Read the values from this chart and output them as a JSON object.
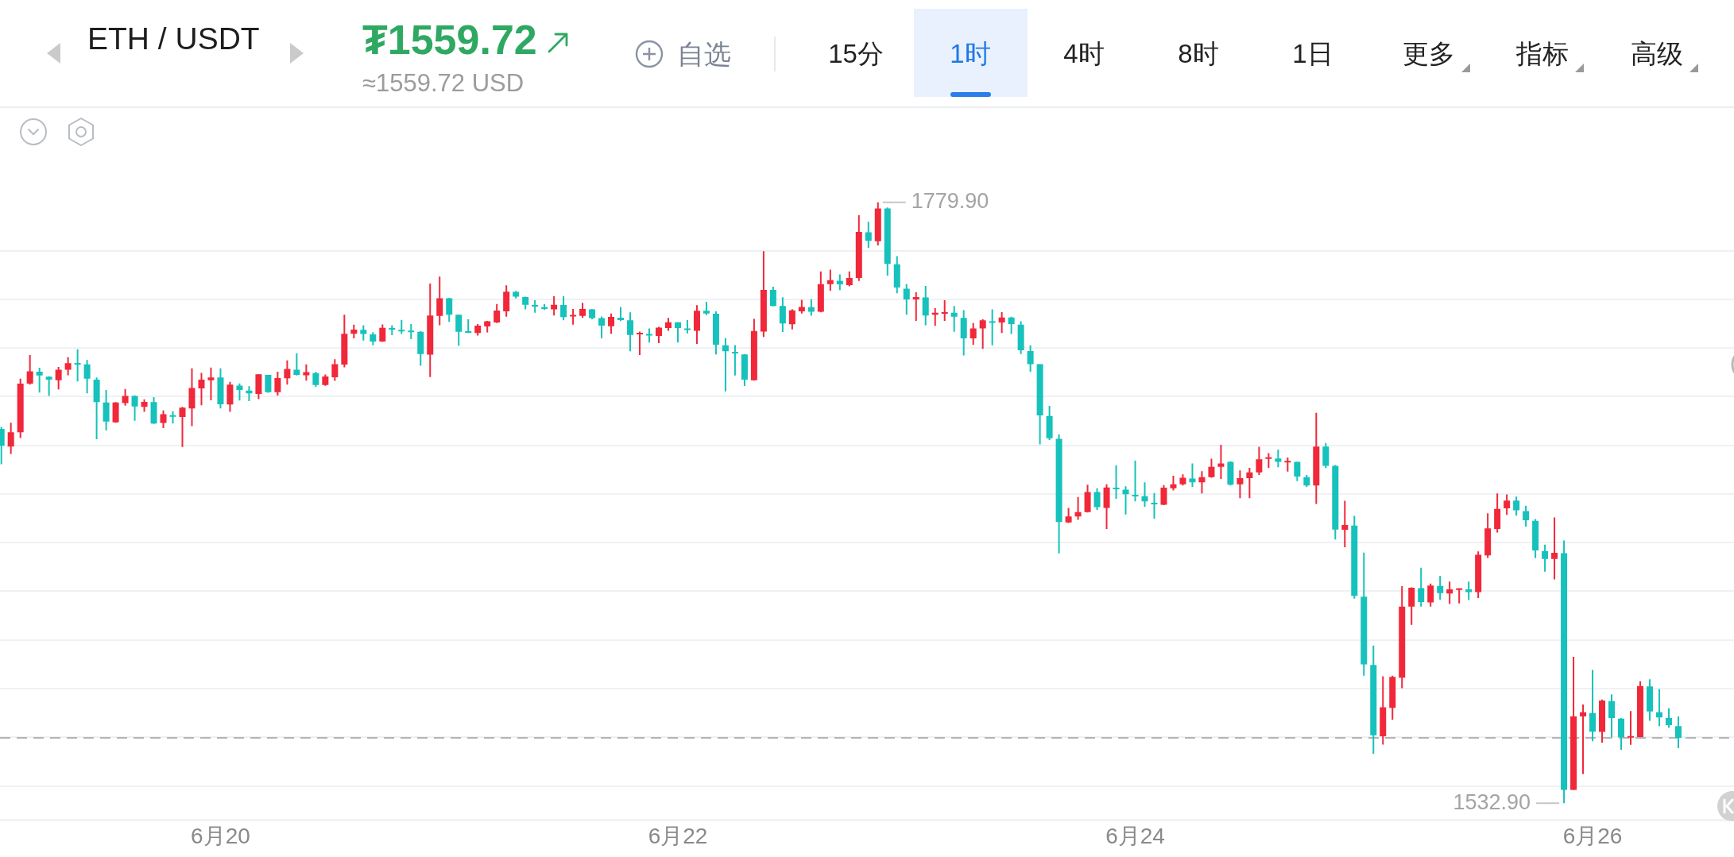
{
  "chart_data": {
    "type": "candlestick",
    "title": "ETH / USDT",
    "annotations": [
      "₮1559.72",
      "≈1559.72 USD",
      "自选",
      "15分",
      "1时",
      "4时",
      "8时",
      "1日",
      "更多",
      "指标",
      "高级",
      "1779.90",
      "1532.90"
    ],
    "categories": [
      null,
      null,
      null,
      null,
      null,
      null,
      null,
      null,
      null,
      null,
      null,
      null,
      null,
      null,
      null,
      null,
      null,
      null,
      null,
      null,
      null,
      null,
      null,
      "6月20",
      null,
      null,
      null,
      null,
      null,
      null,
      null,
      null,
      null,
      null,
      null,
      null,
      null,
      null,
      null,
      null,
      null,
      null,
      null,
      null,
      null,
      null,
      null,
      null,
      null,
      null,
      null,
      null,
      null,
      null,
      null,
      null,
      null,
      null,
      null,
      null,
      null,
      null,
      null,
      null,
      null,
      null,
      null,
      null,
      null,
      null,
      null,
      "6月22",
      null,
      null,
      null,
      null,
      null,
      null,
      null,
      null,
      null,
      null,
      null,
      null,
      null,
      null,
      null,
      null,
      null,
      null,
      null,
      null,
      null,
      null,
      null,
      null,
      null,
      null,
      null,
      null,
      null,
      null,
      null,
      null,
      null,
      null,
      null,
      null,
      null,
      null,
      null,
      null,
      null,
      null,
      null,
      null,
      null,
      null,
      null,
      "6月24",
      null,
      null,
      null,
      null,
      null,
      null,
      null,
      null,
      null,
      null,
      null,
      null,
      null,
      null,
      null,
      null,
      null,
      null,
      null,
      null,
      null,
      null,
      null,
      null,
      null,
      null,
      null,
      null,
      null,
      null,
      null,
      null,
      null,
      null,
      null,
      null,
      null,
      null,
      null,
      null,
      null,
      null,
      null,
      null,
      null,
      null,
      null,
      "6月26",
      null,
      null,
      null,
      null,
      null,
      null,
      null,
      null,
      null
    ],
    "ohlc": [
      [
        1686.8,
        1687.6,
        1672.2,
        1679.8
      ],
      [
        1679.5,
        1689.3,
        1676.5,
        1685.4
      ],
      [
        1685.4,
        1707.4,
        1683.0,
        1705.4
      ],
      [
        1705.4,
        1717.1,
        1705.0,
        1710.4
      ],
      [
        1710.3,
        1711.9,
        1701.7,
        1708.7
      ],
      [
        1708.2,
        1708.4,
        1700.3,
        1707.0
      ],
      [
        1706.8,
        1712.2,
        1703.0,
        1711.1
      ],
      [
        1711.1,
        1716.2,
        1708.8,
        1713.8
      ],
      [
        1713.9,
        1719.5,
        1706.3,
        1713.5
      ],
      [
        1713.3,
        1715.1,
        1701.4,
        1707.4
      ],
      [
        1707.0,
        1707.9,
        1682.5,
        1697.8
      ],
      [
        1697.6,
        1702.8,
        1686.1,
        1689.8
      ],
      [
        1689.5,
        1697.8,
        1689.3,
        1697.6
      ],
      [
        1697.4,
        1703.2,
        1696.3,
        1700.3
      ],
      [
        1700.3,
        1700.6,
        1690.1,
        1696.0
      ],
      [
        1695.8,
        1698.9,
        1693.8,
        1697.9
      ],
      [
        1697.8,
        1699.8,
        1688.8,
        1689.0
      ],
      [
        1689.2,
        1694.4,
        1687.1,
        1692.8
      ],
      [
        1692.4,
        1694.0,
        1689.0,
        1691.9
      ],
      [
        1691.7,
        1695.8,
        1679.3,
        1695.5
      ],
      [
        1695.2,
        1711.7,
        1687.9,
        1703.6
      ],
      [
        1703.4,
        1709.8,
        1696.5,
        1707.0
      ],
      [
        1706.8,
        1712.0,
        1698.5,
        1707.9
      ],
      [
        1707.9,
        1711.7,
        1695.2,
        1696.9
      ],
      [
        1696.8,
        1706.1,
        1693.8,
        1705.0
      ],
      [
        1704.6,
        1705.5,
        1698.4,
        1702.8
      ],
      [
        1702.5,
        1704.3,
        1698.2,
        1701.4
      ],
      [
        1701.1,
        1709.3,
        1699.0,
        1709.2
      ],
      [
        1709.0,
        1709.0,
        1701.6,
        1701.9
      ],
      [
        1701.9,
        1710.3,
        1700.5,
        1707.7
      ],
      [
        1707.6,
        1714.9,
        1705.0,
        1711.4
      ],
      [
        1711.1,
        1717.9,
        1708.7,
        1709.0
      ],
      [
        1708.8,
        1713.3,
        1706.6,
        1710.1
      ],
      [
        1709.7,
        1710.3,
        1704.0,
        1704.8
      ],
      [
        1704.8,
        1709.1,
        1704.5,
        1708.3
      ],
      [
        1708.0,
        1715.4,
        1706.5,
        1713.4
      ],
      [
        1713.2,
        1733.7,
        1712.1,
        1725.9
      ],
      [
        1725.9,
        1729.6,
        1724.0,
        1727.6
      ],
      [
        1727.5,
        1729.4,
        1723.1,
        1725.8
      ],
      [
        1725.6,
        1726.5,
        1721.1,
        1722.7
      ],
      [
        1722.7,
        1729.7,
        1722.5,
        1728.3
      ],
      [
        1728.2,
        1729.4,
        1725.3,
        1727.8
      ],
      [
        1727.5,
        1731.6,
        1725.8,
        1727.0
      ],
      [
        1727.2,
        1729.9,
        1723.7,
        1726.8
      ],
      [
        1726.7,
        1726.9,
        1712.7,
        1717.5
      ],
      [
        1717.3,
        1746.5,
        1708.1,
        1733.4
      ],
      [
        1733.2,
        1749.4,
        1729.4,
        1740.5
      ],
      [
        1740.5,
        1740.6,
        1730.8,
        1733.7
      ],
      [
        1733.7,
        1733.8,
        1721.0,
        1726.7
      ],
      [
        1726.9,
        1731.8,
        1726.2,
        1726.4
      ],
      [
        1726.2,
        1729.9,
        1725.1,
        1729.2
      ],
      [
        1728.9,
        1731.2,
        1726.4,
        1731.0
      ],
      [
        1730.5,
        1738.1,
        1730.3,
        1735.4
      ],
      [
        1735.1,
        1745.8,
        1732.9,
        1743.2
      ],
      [
        1743.1,
        1743.5,
        1740.4,
        1741.1
      ],
      [
        1741.0,
        1741.1,
        1735.9,
        1737.8
      ],
      [
        1737.7,
        1739.7,
        1734.5,
        1737.3
      ],
      [
        1736.8,
        1738.1,
        1735.7,
        1736.1
      ],
      [
        1735.9,
        1741.3,
        1733.4,
        1737.8
      ],
      [
        1737.7,
        1741.3,
        1731.4,
        1732.7
      ],
      [
        1733.2,
        1736.1,
        1729.6,
        1733.6
      ],
      [
        1733.2,
        1738.6,
        1732.4,
        1736.1
      ],
      [
        1735.9,
        1736.1,
        1731.8,
        1732.3
      ],
      [
        1732.3,
        1733.0,
        1724.0,
        1729.2
      ],
      [
        1729.0,
        1734.2,
        1725.9,
        1732.8
      ],
      [
        1732.5,
        1736.9,
        1731.1,
        1731.5
      ],
      [
        1731.4,
        1734.7,
        1718.7,
        1725.4
      ],
      [
        1725.8,
        1726.8,
        1717.1,
        1726.3
      ],
      [
        1725.8,
        1728.1,
        1722.3,
        1725.4
      ],
      [
        1725.0,
        1728.7,
        1722.0,
        1728.4
      ],
      [
        1728.2,
        1732.4,
        1727.1,
        1730.6
      ],
      [
        1730.6,
        1730.7,
        1722.3,
        1728.2
      ],
      [
        1728.1,
        1731.5,
        1726.0,
        1727.7
      ],
      [
        1727.1,
        1737.6,
        1721.7,
        1735.3
      ],
      [
        1735.3,
        1739.0,
        1733.5,
        1734.2
      ],
      [
        1734.1,
        1735.1,
        1717.4,
        1721.4
      ],
      [
        1721.1,
        1724.1,
        1702.2,
        1718.7
      ],
      [
        1718.4,
        1721.2,
        1708.7,
        1717.8
      ],
      [
        1717.4,
        1717.5,
        1704.4,
        1707.0
      ],
      [
        1706.8,
        1732.0,
        1706.6,
        1727.0
      ],
      [
        1726.8,
        1759.8,
        1724.6,
        1743.9
      ],
      [
        1743.9,
        1745.2,
        1737.1,
        1737.3
      ],
      [
        1737.3,
        1740.9,
        1726.6,
        1730.1
      ],
      [
        1729.8,
        1736.0,
        1727.7,
        1735.5
      ],
      [
        1735.1,
        1739.8,
        1734.2,
        1736.9
      ],
      [
        1736.8,
        1740.1,
        1733.3,
        1734.9
      ],
      [
        1734.9,
        1751.5,
        1734.7,
        1746.3
      ],
      [
        1746.3,
        1752.2,
        1743.6,
        1747.9
      ],
      [
        1747.7,
        1750.3,
        1743.8,
        1746.2
      ],
      [
        1745.9,
        1751.5,
        1745.4,
        1748.8
      ],
      [
        1748.8,
        1774.6,
        1747.6,
        1767.7
      ],
      [
        1767.6,
        1771.9,
        1761.2,
        1764.1
      ],
      [
        1763.9,
        1779.9,
        1762.2,
        1777.4
      ],
      [
        1777.4,
        1777.8,
        1749.8,
        1754.6
      ],
      [
        1754.4,
        1757.8,
        1742.5,
        1744.9
      ],
      [
        1744.4,
        1746.3,
        1733.7,
        1740.0
      ],
      [
        1740.0,
        1742.9,
        1731.2,
        1741.0
      ],
      [
        1740.8,
        1745.5,
        1729.4,
        1733.4
      ],
      [
        1733.7,
        1736.4,
        1729.1,
        1734.5
      ],
      [
        1734.2,
        1739.7,
        1731.2,
        1734.8
      ],
      [
        1734.5,
        1737.3,
        1726.7,
        1732.9
      ],
      [
        1732.4,
        1735.6,
        1717.0,
        1724.0
      ],
      [
        1724.0,
        1730.3,
        1721.3,
        1728.1
      ],
      [
        1728.1,
        1731.8,
        1719.7,
        1731.4
      ],
      [
        1731.0,
        1735.9,
        1721.1,
        1730.6
      ],
      [
        1730.5,
        1734.8,
        1726.2,
        1732.6
      ],
      [
        1732.6,
        1732.9,
        1725.8,
        1729.9
      ],
      [
        1729.6,
        1731.0,
        1717.5,
        1719.1
      ],
      [
        1718.8,
        1721.1,
        1710.3,
        1713.4
      ],
      [
        1713.4,
        1713.5,
        1680.4,
        1692.3
      ],
      [
        1692.1,
        1696.2,
        1682.2,
        1682.9
      ],
      [
        1682.7,
        1684.5,
        1635.6,
        1648.5
      ],
      [
        1648.3,
        1654.3,
        1648.1,
        1650.8
      ],
      [
        1650.8,
        1658.8,
        1649.4,
        1652.6
      ],
      [
        1652.6,
        1663.8,
        1652.4,
        1660.8
      ],
      [
        1660.8,
        1662.4,
        1653.5,
        1654.6
      ],
      [
        1654.3,
        1664.0,
        1645.6,
        1662.7
      ],
      [
        1662.6,
        1671.8,
        1658.0,
        1662.2
      ],
      [
        1661.8,
        1663.2,
        1651.6,
        1659.9
      ],
      [
        1659.7,
        1673.7,
        1657.0,
        1659.2
      ],
      [
        1659.1,
        1664.8,
        1654.8,
        1657.0
      ],
      [
        1656.4,
        1660.4,
        1649.9,
        1655.9
      ],
      [
        1655.6,
        1663.7,
        1655.4,
        1662.6
      ],
      [
        1662.4,
        1667.5,
        1661.5,
        1664.0
      ],
      [
        1664.0,
        1668.1,
        1663.5,
        1666.7
      ],
      [
        1666.4,
        1672.6,
        1662.9,
        1664.8
      ],
      [
        1664.8,
        1669.4,
        1660.2,
        1666.9
      ],
      [
        1666.9,
        1674.5,
        1666.7,
        1671.2
      ],
      [
        1671.2,
        1680.2,
        1666.2,
        1672.6
      ],
      [
        1673.2,
        1673.5,
        1663.5,
        1663.8
      ],
      [
        1664.0,
        1669.7,
        1658.3,
        1666.5
      ],
      [
        1666.5,
        1670.8,
        1658.3,
        1668.9
      ],
      [
        1668.9,
        1679.4,
        1667.8,
        1674.3
      ],
      [
        1674.6,
        1676.8,
        1670.7,
        1675.1
      ],
      [
        1674.6,
        1678.3,
        1671.0,
        1673.2
      ],
      [
        1673.2,
        1675.0,
        1669.2,
        1673.6
      ],
      [
        1673.2,
        1673.3,
        1665.3,
        1667.2
      ],
      [
        1666.9,
        1667.8,
        1662.9,
        1663.5
      ],
      [
        1663.5,
        1693.4,
        1655.9,
        1679.5
      ],
      [
        1679.5,
        1681.0,
        1670.7,
        1671.6
      ],
      [
        1671.6,
        1671.9,
        1641.3,
        1645.4
      ],
      [
        1645.3,
        1657.2,
        1638.1,
        1647.3
      ],
      [
        1647.0,
        1651.0,
        1617.0,
        1618.1
      ],
      [
        1617.8,
        1635.9,
        1585.3,
        1590.0
      ],
      [
        1589.7,
        1597.7,
        1553.2,
        1560.8
      ],
      [
        1560.4,
        1585.1,
        1557.0,
        1572.3
      ],
      [
        1572.1,
        1585.3,
        1567.2,
        1584.8
      ],
      [
        1584.5,
        1622.1,
        1580.2,
        1613.7
      ],
      [
        1613.7,
        1621.6,
        1606.2,
        1621.5
      ],
      [
        1621.3,
        1629.7,
        1613.7,
        1615.6
      ],
      [
        1615.4,
        1623.2,
        1613.7,
        1622.4
      ],
      [
        1622.2,
        1626.4,
        1616.6,
        1619.3
      ],
      [
        1619.1,
        1624.0,
        1614.8,
        1620.8
      ],
      [
        1620.8,
        1621.3,
        1615.0,
        1621.2
      ],
      [
        1620.8,
        1624.0,
        1616.4,
        1619.7
      ],
      [
        1619.7,
        1636.4,
        1617.2,
        1635.0
      ],
      [
        1634.8,
        1652.1,
        1633.7,
        1645.9
      ],
      [
        1645.6,
        1660.2,
        1644.2,
        1653.9
      ],
      [
        1654.1,
        1659.8,
        1651.4,
        1657.3
      ],
      [
        1657.3,
        1658.9,
        1651.1,
        1653.3
      ],
      [
        1653.0,
        1655.2,
        1646.6,
        1649.2
      ],
      [
        1649.0,
        1649.7,
        1633.6,
        1636.8
      ],
      [
        1636.5,
        1639.2,
        1628.1,
        1633.3
      ],
      [
        1633.3,
        1650.4,
        1624.9,
        1635.8
      ],
      [
        1635.7,
        1640.9,
        1532.9,
        1538.4
      ],
      [
        1538.4,
        1593.1,
        1538.3,
        1568.6
      ],
      [
        1568.6,
        1573.5,
        1544.9,
        1570.3
      ],
      [
        1570.0,
        1587.7,
        1558.4,
        1562.3
      ],
      [
        1562.2,
        1575.5,
        1557.8,
        1575.1
      ],
      [
        1574.9,
        1577.6,
        1560.1,
        1567.9
      ],
      [
        1567.7,
        1567.9,
        1554.9,
        1560.0
      ],
      [
        1560.0,
        1570.8,
        1556.9,
        1560.5
      ],
      [
        1560.1,
        1583.0,
        1560.0,
        1581.1
      ],
      [
        1580.9,
        1583.8,
        1566.8,
        1570.6
      ],
      [
        1570.3,
        1579.8,
        1564.6,
        1568.2
      ],
      [
        1567.9,
        1571.9,
        1563.9,
        1565.0
      ],
      [
        1564.6,
        1568.6,
        1555.5,
        1559.72
      ]
    ],
    "colors": [
      "#16c2bb",
      "#f0283a",
      "#f0283a",
      "#f0283a",
      "#16c2bb",
      "#16c2bb",
      "#f0283a",
      "#f0283a",
      "#16c2bb",
      "#16c2bb",
      "#16c2bb",
      "#16c2bb",
      "#f0283a",
      "#f0283a",
      "#16c2bb",
      "#f0283a",
      "#16c2bb",
      "#f0283a",
      "#16c2bb",
      "#f0283a",
      "#f0283a",
      "#f0283a",
      "#f0283a",
      "#16c2bb",
      "#f0283a",
      "#16c2bb",
      "#16c2bb",
      "#f0283a",
      "#16c2bb",
      "#f0283a",
      "#f0283a",
      "#16c2bb",
      "#f0283a",
      "#16c2bb",
      "#f0283a",
      "#f0283a",
      "#f0283a",
      "#f0283a",
      "#16c2bb",
      "#16c2bb",
      "#f0283a",
      "#16c2bb",
      "#16c2bb",
      "#16c2bb",
      "#16c2bb",
      "#f0283a",
      "#f0283a",
      "#16c2bb",
      "#16c2bb",
      "#16c2bb",
      "#f0283a",
      "#f0283a",
      "#f0283a",
      "#f0283a",
      "#16c2bb",
      "#16c2bb",
      "#16c2bb",
      "#16c2bb",
      "#f0283a",
      "#16c2bb",
      "#f0283a",
      "#f0283a",
      "#16c2bb",
      "#16c2bb",
      "#f0283a",
      "#16c2bb",
      "#16c2bb",
      "#f0283a",
      "#16c2bb",
      "#f0283a",
      "#f0283a",
      "#16c2bb",
      "#16c2bb",
      "#f0283a",
      "#16c2bb",
      "#16c2bb",
      "#16c2bb",
      "#16c2bb",
      "#16c2bb",
      "#f0283a",
      "#f0283a",
      "#16c2bb",
      "#16c2bb",
      "#f0283a",
      "#f0283a",
      "#16c2bb",
      "#f0283a",
      "#f0283a",
      "#16c2bb",
      "#f0283a",
      "#f0283a",
      "#16c2bb",
      "#f0283a",
      "#16c2bb",
      "#16c2bb",
      "#16c2bb",
      "#f0283a",
      "#16c2bb",
      "#f0283a",
      "#f0283a",
      "#16c2bb",
      "#16c2bb",
      "#f0283a",
      "#f0283a",
      "#16c2bb",
      "#f0283a",
      "#16c2bb",
      "#16c2bb",
      "#16c2bb",
      "#16c2bb",
      "#16c2bb",
      "#16c2bb",
      "#f0283a",
      "#f0283a",
      "#f0283a",
      "#16c2bb",
      "#f0283a",
      "#16c2bb",
      "#16c2bb",
      "#16c2bb",
      "#16c2bb",
      "#16c2bb",
      "#f0283a",
      "#f0283a",
      "#f0283a",
      "#16c2bb",
      "#f0283a",
      "#f0283a",
      "#f0283a",
      "#16c2bb",
      "#f0283a",
      "#f0283a",
      "#f0283a",
      "#f0283a",
      "#16c2bb",
      "#f0283a",
      "#16c2bb",
      "#16c2bb",
      "#f0283a",
      "#16c2bb",
      "#16c2bb",
      "#f0283a",
      "#16c2bb",
      "#16c2bb",
      "#16c2bb",
      "#f0283a",
      "#f0283a",
      "#f0283a",
      "#f0283a",
      "#16c2bb",
      "#f0283a",
      "#16c2bb",
      "#f0283a",
      "#f0283a",
      "#16c2bb",
      "#f0283a",
      "#f0283a",
      "#f0283a",
      "#f0283a",
      "#16c2bb",
      "#16c2bb",
      "#16c2bb",
      "#16c2bb",
      "#f0283a",
      "#16c2bb",
      "#f0283a",
      "#f0283a",
      "#16c2bb",
      "#f0283a",
      "#16c2bb",
      "#16c2bb",
      "#f0283a",
      "#f0283a",
      "#16c2bb",
      "#16c2bb",
      "#16c2bb",
      "#16c2bb"
    ],
    "ylim": [
      1526,
      1819
    ],
    "yticks": [
      {
        "value": 1540,
        "label": null
      },
      {
        "value": 1560,
        "label": null
      },
      {
        "value": 1580,
        "label": null
      },
      {
        "value": 1600,
        "label": null
      },
      {
        "value": 1620,
        "label": null
      },
      {
        "value": 1640,
        "label": null
      },
      {
        "value": 1660,
        "label": null
      },
      {
        "value": 1680,
        "label": null
      },
      {
        "value": 1700,
        "label": null
      },
      {
        "value": 1720,
        "label": null
      },
      {
        "value": 1740,
        "label": null
      },
      {
        "value": 1760,
        "label": null
      }
    ],
    "ref_lines": [
      {
        "axis": "y",
        "value": 1559.72,
        "color": "#b4b4b4",
        "line_style": "dashed"
      }
    ],
    "grid": "y",
    "tick_labels": "x"
  }
}
